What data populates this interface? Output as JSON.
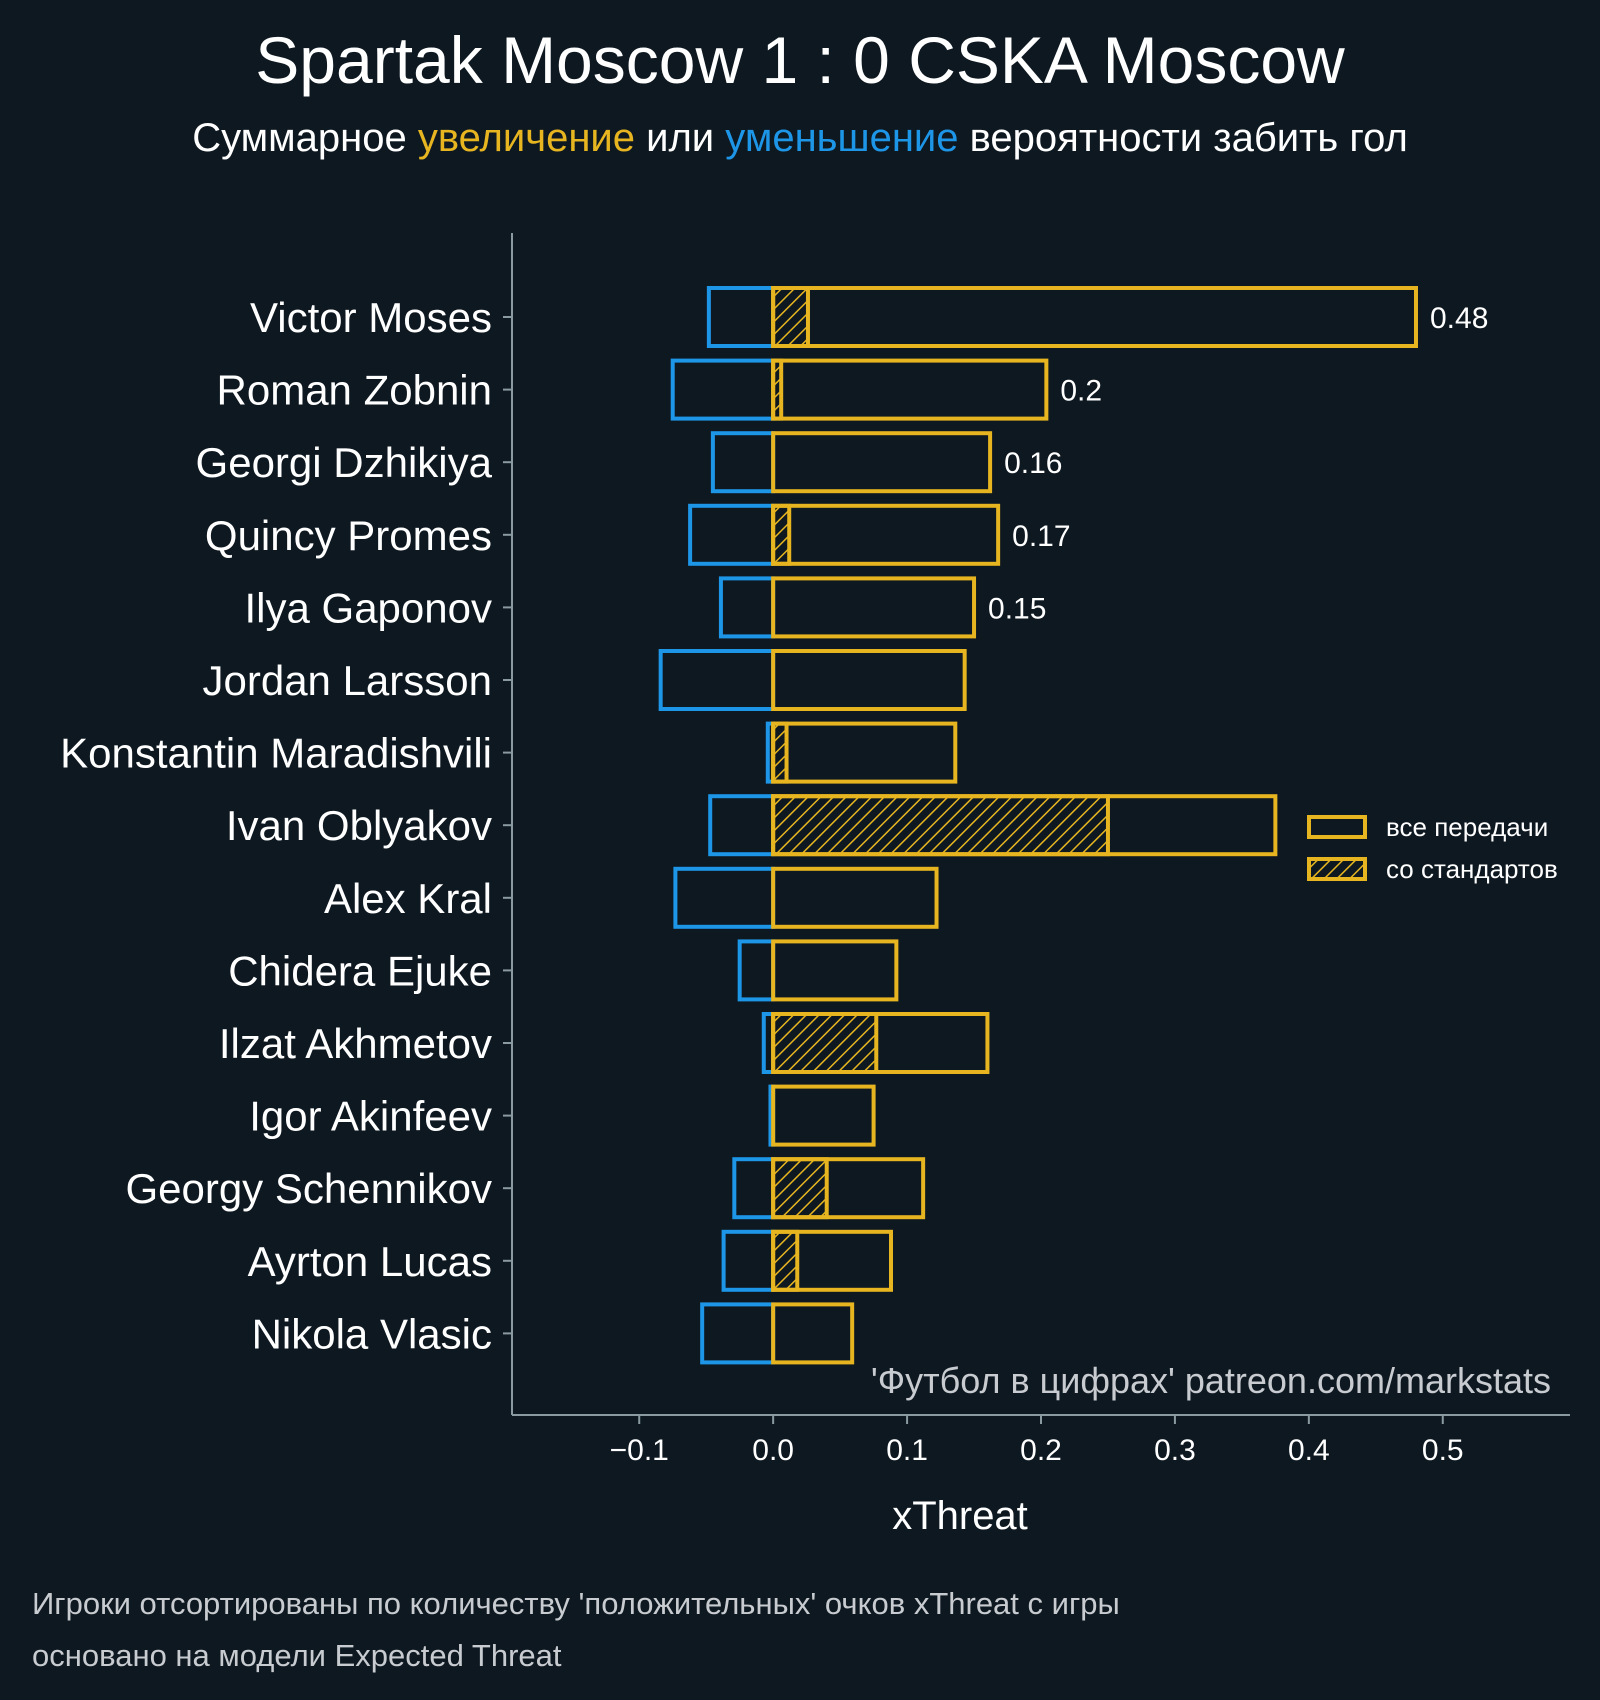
{
  "colors": {
    "background": "#0e1821",
    "positive": "#e6b520",
    "negative": "#1e96e8",
    "axis": "#8a9aa0",
    "text": "#ffffff",
    "muted": "#c8ccd0"
  },
  "header": {
    "title": "Spartak Moscow 1 : 0 CSKA Moscow",
    "subtitle_prefix": "Суммарное ",
    "subtitle_positive": "увеличение",
    "subtitle_middle": " или ",
    "subtitle_negative": "уменьшение",
    "subtitle_suffix": " вероятности забить гол"
  },
  "chart_data": {
    "type": "bar",
    "orientation": "horizontal",
    "xlabel": "xThreat",
    "xlim": [
      -0.195,
      0.595
    ],
    "xticks": [
      -0.1,
      0.0,
      0.1,
      0.2,
      0.3,
      0.4,
      0.5
    ],
    "xtick_labels": [
      "−0.1",
      "0.0",
      "0.1",
      "0.2",
      "0.3",
      "0.4",
      "0.5"
    ],
    "categories": [
      "Victor Moses",
      "Roman Zobnin",
      "Georgi Dzhikiya",
      "Quincy Promes",
      "Ilya Gaponov",
      "Jordan Larsson",
      "Konstantin Maradishvili",
      "Ivan Oblyakov",
      "Alex Kral",
      "Chidera Ejuke",
      "Ilzat Akhmetov",
      "Igor Akinfeev",
      "Georgy Schennikov",
      "Ayrton Lucas",
      "Nikola Vlasic"
    ],
    "series": [
      {
        "name": "все передачи (положительные)",
        "values": [
          0.48,
          0.204,
          0.162,
          0.168,
          0.15,
          0.143,
          0.136,
          0.375,
          0.122,
          0.092,
          0.16,
          0.075,
          0.112,
          0.088,
          0.059
        ]
      },
      {
        "name": "со стандартов",
        "values": [
          0.026,
          0.006,
          0.0,
          0.012,
          0.0,
          0.0,
          0.01,
          0.25,
          0.0,
          0.0,
          0.077,
          0.0,
          0.04,
          0.018,
          0.0
        ]
      },
      {
        "name": "все передачи (отрицательные)",
        "values": [
          -0.048,
          -0.075,
          -0.045,
          -0.062,
          -0.039,
          -0.084,
          -0.004,
          -0.047,
          -0.073,
          -0.025,
          -0.007,
          -0.002,
          -0.029,
          -0.037,
          -0.053
        ]
      }
    ],
    "value_labels": [
      "0.48",
      "0.2",
      "0.16",
      "0.17",
      "0.15",
      "",
      "",
      "",
      "",
      "",
      "",
      "",
      "",
      "",
      ""
    ],
    "legend": {
      "placement": "right",
      "items": [
        "все передачи",
        "со стандартов"
      ]
    }
  },
  "watermark": "'Футбол в цифрах' patreon.com/markstats",
  "footnotes": {
    "line1": "Игроки отсортированы по количеству 'положительных' очков xThreat с игры",
    "line2": "основано на модели Expected Threat"
  }
}
